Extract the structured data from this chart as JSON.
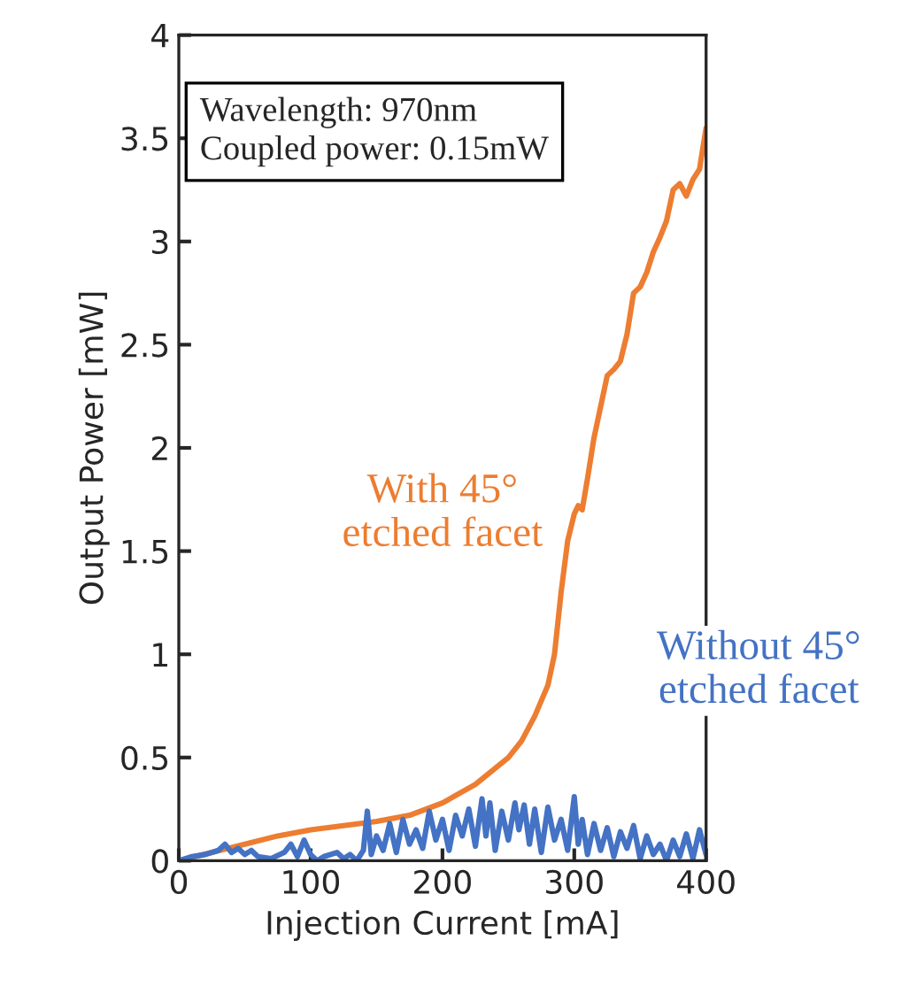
{
  "chart_data": {
    "type": "line",
    "xlabel": "Injection Current [mA]",
    "ylabel": "Output Power [mW]",
    "annotations": [
      "Wavelength: 970nm\nCoupled power: 0.15mW"
    ],
    "xlim": [
      0,
      400
    ],
    "xticks": [
      0,
      100,
      200,
      300,
      400
    ],
    "ylim": [
      0,
      4
    ],
    "yticks": [
      0,
      0.5,
      1,
      1.5,
      2,
      2.5,
      3,
      3.5,
      4
    ],
    "grid": false,
    "legend": false,
    "marker": "none",
    "line_style": "solid",
    "series": [
      {
        "name": "With 45°\netched facet",
        "color": "#ed7d31",
        "x": [
          0,
          25,
          50,
          75,
          100,
          125,
          150,
          175,
          200,
          225,
          250,
          260,
          270,
          280,
          285,
          290,
          295,
          300,
          303,
          306,
          310,
          315,
          320,
          325,
          330,
          335,
          340,
          345,
          350,
          355,
          360,
          365,
          370,
          375,
          380,
          385,
          390,
          395,
          400
        ],
        "values": [
          0,
          0.04,
          0.08,
          0.12,
          0.15,
          0.17,
          0.19,
          0.22,
          0.28,
          0.37,
          0.5,
          0.58,
          0.7,
          0.85,
          1.0,
          1.3,
          1.55,
          1.68,
          1.72,
          1.7,
          1.85,
          2.05,
          2.2,
          2.35,
          2.38,
          2.42,
          2.55,
          2.75,
          2.78,
          2.85,
          2.95,
          3.02,
          3.1,
          3.25,
          3.28,
          3.22,
          3.3,
          3.35,
          3.55
        ]
      },
      {
        "name": "Without 45°\netched facet",
        "color": "#4472c4",
        "x": [
          0,
          10,
          20,
          30,
          35,
          40,
          45,
          50,
          55,
          60,
          70,
          80,
          85,
          90,
          95,
          100,
          105,
          110,
          120,
          125,
          130,
          135,
          140,
          143,
          146,
          150,
          155,
          160,
          165,
          170,
          175,
          180,
          185,
          190,
          195,
          200,
          205,
          210,
          215,
          220,
          225,
          230,
          233,
          236,
          240,
          245,
          250,
          255,
          258,
          262,
          266,
          270,
          275,
          280,
          285,
          290,
          295,
          300,
          303,
          306,
          310,
          315,
          320,
          325,
          330,
          335,
          340,
          345,
          350,
          355,
          360,
          365,
          370,
          375,
          380,
          385,
          390,
          395,
          400
        ],
        "values": [
          0,
          0.02,
          0.03,
          0.05,
          0.08,
          0.04,
          0.06,
          0.03,
          0.05,
          0.02,
          0.01,
          0.04,
          0.08,
          0.02,
          0.1,
          0.03,
          0.0,
          0.02,
          0.04,
          0.01,
          0.03,
          0.0,
          0.05,
          0.24,
          0.03,
          0.12,
          0.05,
          0.18,
          0.04,
          0.2,
          0.08,
          0.15,
          0.06,
          0.24,
          0.1,
          0.2,
          0.05,
          0.22,
          0.12,
          0.25,
          0.07,
          0.3,
          0.12,
          0.28,
          0.05,
          0.24,
          0.1,
          0.28,
          0.15,
          0.27,
          0.08,
          0.25,
          0.04,
          0.26,
          0.1,
          0.2,
          0.05,
          0.31,
          0.08,
          0.2,
          0.03,
          0.18,
          0.05,
          0.16,
          0.02,
          0.14,
          0.06,
          0.17,
          0.01,
          0.12,
          0.03,
          0.08,
          0.0,
          0.1,
          0.02,
          0.13,
          0.01,
          0.15,
          0.03
        ]
      }
    ]
  }
}
